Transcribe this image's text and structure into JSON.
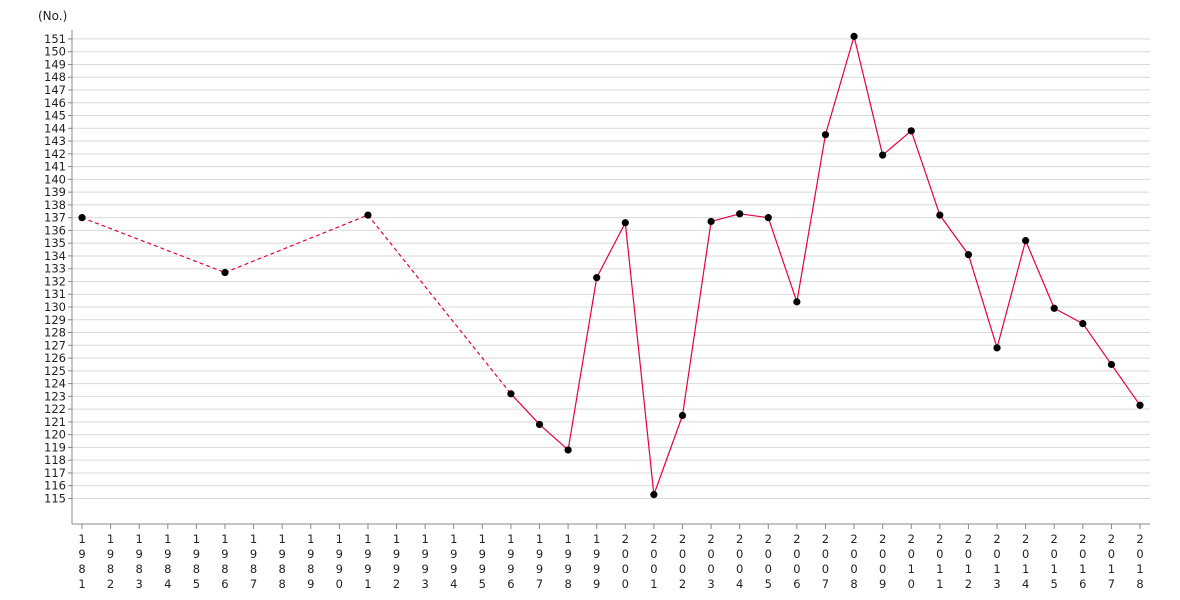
{
  "chart_data": {
    "type": "line",
    "title": "",
    "ylabel": "(No.)",
    "xlabel": "",
    "ylim": [
      113,
      151.7
    ],
    "yticks": [
      115,
      116,
      117,
      118,
      119,
      120,
      121,
      122,
      123,
      124,
      125,
      126,
      127,
      128,
      129,
      130,
      131,
      132,
      133,
      134,
      135,
      136,
      137,
      138,
      139,
      140,
      141,
      142,
      143,
      144,
      145,
      146,
      147,
      148,
      149,
      150,
      151
    ],
    "categories": [
      "1981",
      "1982",
      "1983",
      "1984",
      "1985",
      "1986",
      "1987",
      "1988",
      "1989",
      "1990",
      "1991",
      "1992",
      "1993",
      "1994",
      "1995",
      "1996",
      "1997",
      "1998",
      "1999",
      "2000",
      "2001",
      "2002",
      "2003",
      "2004",
      "2005",
      "2006",
      "2007",
      "2008",
      "2009",
      "2010",
      "2011",
      "2012",
      "2013",
      "2014",
      "2015",
      "2016",
      "2017",
      "2018"
    ],
    "grid": true,
    "series": [
      {
        "color": "#e8003c",
        "marker_color": "#000000",
        "points": [
          {
            "x": "1981",
            "y": 137.0
          },
          {
            "x": "1986",
            "y": 132.7
          },
          {
            "x": "1991",
            "y": 137.2
          },
          {
            "x": "1996",
            "y": 123.2
          },
          {
            "x": "1997",
            "y": 120.8
          },
          {
            "x": "1998",
            "y": 118.8
          },
          {
            "x": "1999",
            "y": 132.3
          },
          {
            "x": "2000",
            "y": 136.6
          },
          {
            "x": "2001",
            "y": 115.3
          },
          {
            "x": "2002",
            "y": 121.5
          },
          {
            "x": "2003",
            "y": 136.7
          },
          {
            "x": "2004",
            "y": 137.3
          },
          {
            "x": "2005",
            "y": 137.0
          },
          {
            "x": "2006",
            "y": 130.4
          },
          {
            "x": "2007",
            "y": 143.5
          },
          {
            "x": "2008",
            "y": 151.2
          },
          {
            "x": "2009",
            "y": 141.9
          },
          {
            "x": "2010",
            "y": 143.8
          },
          {
            "x": "2011",
            "y": 137.2
          },
          {
            "x": "2012",
            "y": 134.1
          },
          {
            "x": "2013",
            "y": 126.8
          },
          {
            "x": "2014",
            "y": 135.2
          },
          {
            "x": "2015",
            "y": 129.9
          },
          {
            "x": "2016",
            "y": 128.7
          },
          {
            "x": "2017",
            "y": 125.5
          },
          {
            "x": "2018",
            "y": 122.3
          }
        ],
        "gaps_dashed": true
      }
    ]
  }
}
